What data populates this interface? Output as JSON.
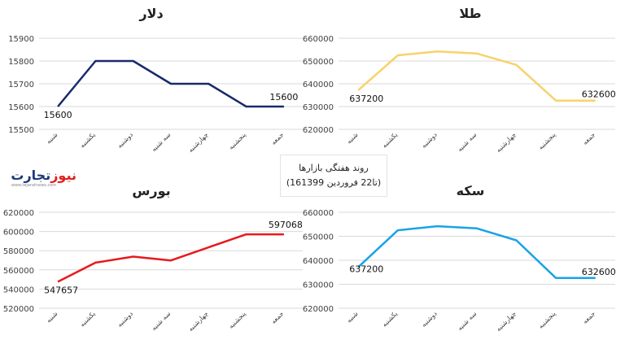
{
  "center_caption": {
    "line1": "روند هفتگی بازارها",
    "line2": "(16تا22 فروردین 1399)"
  },
  "logo": {
    "text_a": "تجارت",
    "text_b": "نیوز",
    "site": "www.tejaratnews.com"
  },
  "colors": {
    "dollar": "#1a2a6c",
    "gold": "#f6d36b",
    "bourse": "#e8191c",
    "coin": "#1aa3e6",
    "grid": "#d9d9d9",
    "text": "#404040"
  },
  "chart_data": [
    {
      "id": "dollar",
      "type": "line",
      "title": "دلار",
      "categories": [
        "شنبه",
        "یکشنبه",
        "دوشنبه",
        "سه شنبه",
        "چهارشنبه",
        "پنجشنبه",
        "جمعه"
      ],
      "series": [
        {
          "values": [
            15600,
            15800,
            15800,
            15700,
            15700,
            15600,
            15600
          ]
        }
      ],
      "ylim": [
        15500,
        15900
      ],
      "yticks": [
        15500,
        15600,
        15700,
        15800,
        15900
      ],
      "data_labels": [
        {
          "index": 0,
          "text": "15600"
        },
        {
          "index": 6,
          "text": "15600"
        }
      ],
      "grid": true,
      "color_key": "dollar"
    },
    {
      "id": "gold",
      "type": "line",
      "title": "طلا",
      "categories": [
        "شنبه",
        "یکشنبه",
        "دوشنبه",
        "سه شنبه",
        "چهارشنبه",
        "پنجشنبه",
        "جمعه"
      ],
      "series": [
        {
          "values": [
            637200,
            652500,
            654200,
            653300,
            648300,
            632600,
            632600
          ]
        }
      ],
      "ylim": [
        620000,
        660000
      ],
      "yticks": [
        620000,
        630000,
        640000,
        650000,
        660000
      ],
      "data_labels": [
        {
          "index": 0,
          "text": "637200"
        },
        {
          "index": 6,
          "text": "632600"
        }
      ],
      "grid": true,
      "color_key": "gold"
    },
    {
      "id": "bourse",
      "type": "line",
      "title": "بورس",
      "categories": [
        "شنبه",
        "یکشنبه",
        "دوشنبه",
        "سه شنبه",
        "چهارشنبه",
        "پنجشنبه",
        "جمعه"
      ],
      "series": [
        {
          "values": [
            547657,
            567500,
            573800,
            569800,
            583500,
            597068,
            597068
          ]
        }
      ],
      "ylim": [
        520000,
        620000
      ],
      "yticks": [
        520000,
        540000,
        560000,
        580000,
        600000,
        620000
      ],
      "data_labels": [
        {
          "index": 0,
          "text": "547657"
        },
        {
          "index": 6,
          "text": "597068"
        }
      ],
      "grid": true,
      "color_key": "bourse"
    },
    {
      "id": "coin",
      "type": "line",
      "title": "سکه",
      "categories": [
        "شنبه",
        "یکشنبه",
        "دوشنبه",
        "سه شنبه",
        "چهارشنبه",
        "پنجشنبه",
        "جمعه"
      ],
      "series": [
        {
          "values": [
            637200,
            652500,
            654200,
            653300,
            648300,
            632600,
            632600
          ]
        }
      ],
      "ylim": [
        620000,
        660000
      ],
      "yticks": [
        620000,
        630000,
        640000,
        650000,
        660000
      ],
      "data_labels": [
        {
          "index": 0,
          "text": "637200"
        },
        {
          "index": 6,
          "text": "632600"
        }
      ],
      "grid": true,
      "color_key": "coin"
    }
  ]
}
